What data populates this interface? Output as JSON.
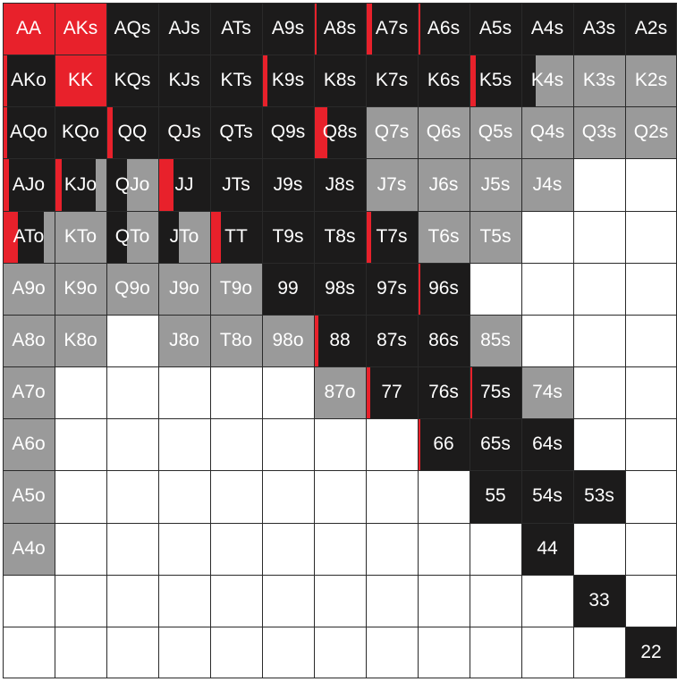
{
  "colors": {
    "raise": "#e8212b",
    "call": "#1c1b1b",
    "limp": "#9a9a9a",
    "fold": "#ffffff",
    "text": "#ffffff",
    "grid": "#2a2a2a"
  },
  "rows": [
    [
      {
        "label": "AA",
        "r": 1.0,
        "c": 0.0,
        "l": 0.0
      },
      {
        "label": "AKs",
        "r": 1.0,
        "c": 0.0,
        "l": 0.0
      },
      {
        "label": "AQs",
        "r": 0.0,
        "c": 1.0,
        "l": 0.0
      },
      {
        "label": "AJs",
        "r": 0.0,
        "c": 1.0,
        "l": 0.0
      },
      {
        "label": "ATs",
        "r": 0.0,
        "c": 1.0,
        "l": 0.0
      },
      {
        "label": "A9s",
        "r": 0.0,
        "c": 1.0,
        "l": 0.0
      },
      {
        "label": "A8s",
        "r": 0.06,
        "c": 0.94,
        "l": 0.0
      },
      {
        "label": "A7s",
        "r": 0.12,
        "c": 0.88,
        "l": 0.0
      },
      {
        "label": "A6s",
        "r": 0.06,
        "c": 0.94,
        "l": 0.0
      },
      {
        "label": "A5s",
        "r": 0.0,
        "c": 1.0,
        "l": 0.0
      },
      {
        "label": "A4s",
        "r": 0.0,
        "c": 1.0,
        "l": 0.0
      },
      {
        "label": "A3s",
        "r": 0.0,
        "c": 1.0,
        "l": 0.0
      },
      {
        "label": "A2s",
        "r": 0.0,
        "c": 1.0,
        "l": 0.0
      }
    ],
    [
      {
        "label": "AKo",
        "r": 0.08,
        "c": 0.92,
        "l": 0.0
      },
      {
        "label": "KK",
        "r": 1.0,
        "c": 0.0,
        "l": 0.0
      },
      {
        "label": "KQs",
        "r": 0.0,
        "c": 1.0,
        "l": 0.0
      },
      {
        "label": "KJs",
        "r": 0.0,
        "c": 1.0,
        "l": 0.0
      },
      {
        "label": "KTs",
        "r": 0.0,
        "c": 1.0,
        "l": 0.0
      },
      {
        "label": "K9s",
        "r": 0.1,
        "c": 0.9,
        "l": 0.0
      },
      {
        "label": "K8s",
        "r": 0.0,
        "c": 1.0,
        "l": 0.0
      },
      {
        "label": "K7s",
        "r": 0.0,
        "c": 1.0,
        "l": 0.0
      },
      {
        "label": "K6s",
        "r": 0.0,
        "c": 1.0,
        "l": 0.0
      },
      {
        "label": "K5s",
        "r": 0.12,
        "c": 0.88,
        "l": 0.0
      },
      {
        "label": "K4s",
        "r": 0.0,
        "c": 0.28,
        "l": 0.72
      },
      {
        "label": "K3s",
        "r": 0.0,
        "c": 0.0,
        "l": 1.0
      },
      {
        "label": "K2s",
        "r": 0.0,
        "c": 0.0,
        "l": 1.0
      }
    ],
    [
      {
        "label": "AQo",
        "r": 0.08,
        "c": 0.92,
        "l": 0.0
      },
      {
        "label": "KQo",
        "r": 0.0,
        "c": 1.0,
        "l": 0.0
      },
      {
        "label": "QQ",
        "r": 0.12,
        "c": 0.88,
        "l": 0.0
      },
      {
        "label": "QJs",
        "r": 0.0,
        "c": 1.0,
        "l": 0.0
      },
      {
        "label": "QTs",
        "r": 0.0,
        "c": 1.0,
        "l": 0.0
      },
      {
        "label": "Q9s",
        "r": 0.0,
        "c": 1.0,
        "l": 0.0
      },
      {
        "label": "Q8s",
        "r": 0.25,
        "c": 0.75,
        "l": 0.0
      },
      {
        "label": "Q7s",
        "r": 0.0,
        "c": 0.0,
        "l": 1.0
      },
      {
        "label": "Q6s",
        "r": 0.0,
        "c": 0.0,
        "l": 1.0
      },
      {
        "label": "Q5s",
        "r": 0.0,
        "c": 0.0,
        "l": 1.0
      },
      {
        "label": "Q4s",
        "r": 0.0,
        "c": 0.0,
        "l": 1.0
      },
      {
        "label": "Q3s",
        "r": 0.0,
        "c": 0.0,
        "l": 1.0
      },
      {
        "label": "Q2s",
        "r": 0.0,
        "c": 0.0,
        "l": 1.0
      }
    ],
    [
      {
        "label": "AJo",
        "r": 0.12,
        "c": 0.88,
        "l": 0.0
      },
      {
        "label": "KJo",
        "r": 0.14,
        "c": 0.66,
        "l": 0.2
      },
      {
        "label": "QJo",
        "r": 0.0,
        "c": 0.4,
        "l": 0.6
      },
      {
        "label": "JJ",
        "r": 0.3,
        "c": 0.7,
        "l": 0.0
      },
      {
        "label": "JTs",
        "r": 0.0,
        "c": 1.0,
        "l": 0.0
      },
      {
        "label": "J9s",
        "r": 0.0,
        "c": 1.0,
        "l": 0.0
      },
      {
        "label": "J8s",
        "r": 0.0,
        "c": 1.0,
        "l": 0.0
      },
      {
        "label": "J7s",
        "r": 0.0,
        "c": 0.0,
        "l": 1.0
      },
      {
        "label": "J6s",
        "r": 0.0,
        "c": 0.0,
        "l": 1.0
      },
      {
        "label": "J5s",
        "r": 0.0,
        "c": 0.0,
        "l": 1.0
      },
      {
        "label": "J4s",
        "r": 0.0,
        "c": 0.0,
        "l": 1.0
      },
      {
        "label": "",
        "r": 0.0,
        "c": 0.0,
        "l": 0.0
      },
      {
        "label": "",
        "r": 0.0,
        "c": 0.0,
        "l": 0.0
      }
    ],
    [
      {
        "label": "ATo",
        "r": 0.3,
        "c": 0.5,
        "l": 0.2
      },
      {
        "label": "KTo",
        "r": 0.0,
        "c": 0.0,
        "l": 1.0
      },
      {
        "label": "QTo",
        "r": 0.0,
        "c": 0.4,
        "l": 0.6
      },
      {
        "label": "JTo",
        "r": 0.0,
        "c": 0.4,
        "l": 0.6
      },
      {
        "label": "TT",
        "r": 0.2,
        "c": 0.8,
        "l": 0.0
      },
      {
        "label": "T9s",
        "r": 0.0,
        "c": 1.0,
        "l": 0.0
      },
      {
        "label": "T8s",
        "r": 0.0,
        "c": 1.0,
        "l": 0.0
      },
      {
        "label": "T7s",
        "r": 0.1,
        "c": 0.9,
        "l": 0.0
      },
      {
        "label": "T6s",
        "r": 0.0,
        "c": 0.0,
        "l": 1.0
      },
      {
        "label": "T5s",
        "r": 0.0,
        "c": 0.0,
        "l": 1.0
      },
      {
        "label": "",
        "r": 0.0,
        "c": 0.0,
        "l": 0.0
      },
      {
        "label": "",
        "r": 0.0,
        "c": 0.0,
        "l": 0.0
      },
      {
        "label": "",
        "r": 0.0,
        "c": 0.0,
        "l": 0.0
      }
    ],
    [
      {
        "label": "A9o",
        "r": 0.0,
        "c": 0.0,
        "l": 1.0
      },
      {
        "label": "K9o",
        "r": 0.0,
        "c": 0.0,
        "l": 1.0
      },
      {
        "label": "Q9o",
        "r": 0.0,
        "c": 0.0,
        "l": 1.0
      },
      {
        "label": "J9o",
        "r": 0.0,
        "c": 0.0,
        "l": 1.0
      },
      {
        "label": "T9o",
        "r": 0.0,
        "c": 0.0,
        "l": 1.0
      },
      {
        "label": "99",
        "r": 0.0,
        "c": 1.0,
        "l": 0.0
      },
      {
        "label": "98s",
        "r": 0.0,
        "c": 1.0,
        "l": 0.0
      },
      {
        "label": "97s",
        "r": 0.0,
        "c": 1.0,
        "l": 0.0
      },
      {
        "label": "96s",
        "r": 0.06,
        "c": 0.94,
        "l": 0.0
      },
      {
        "label": "",
        "r": 0.0,
        "c": 0.0,
        "l": 0.0
      },
      {
        "label": "",
        "r": 0.0,
        "c": 0.0,
        "l": 0.0
      },
      {
        "label": "",
        "r": 0.0,
        "c": 0.0,
        "l": 0.0
      },
      {
        "label": "",
        "r": 0.0,
        "c": 0.0,
        "l": 0.0
      }
    ],
    [
      {
        "label": "A8o",
        "r": 0.0,
        "c": 0.0,
        "l": 1.0
      },
      {
        "label": "K8o",
        "r": 0.0,
        "c": 0.0,
        "l": 1.0
      },
      {
        "label": "",
        "r": 0.0,
        "c": 0.0,
        "l": 0.0
      },
      {
        "label": "J8o",
        "r": 0.0,
        "c": 0.0,
        "l": 1.0
      },
      {
        "label": "T8o",
        "r": 0.0,
        "c": 0.0,
        "l": 1.0
      },
      {
        "label": "98o",
        "r": 0.0,
        "c": 0.0,
        "l": 1.0
      },
      {
        "label": "88",
        "r": 0.08,
        "c": 0.92,
        "l": 0.0
      },
      {
        "label": "87s",
        "r": 0.0,
        "c": 1.0,
        "l": 0.0
      },
      {
        "label": "86s",
        "r": 0.0,
        "c": 1.0,
        "l": 0.0
      },
      {
        "label": "85s",
        "r": 0.0,
        "c": 0.0,
        "l": 1.0
      },
      {
        "label": "",
        "r": 0.0,
        "c": 0.0,
        "l": 0.0
      },
      {
        "label": "",
        "r": 0.0,
        "c": 0.0,
        "l": 0.0
      },
      {
        "label": "",
        "r": 0.0,
        "c": 0.0,
        "l": 0.0
      }
    ],
    [
      {
        "label": "A7o",
        "r": 0.0,
        "c": 0.0,
        "l": 1.0
      },
      {
        "label": "",
        "r": 0.0,
        "c": 0.0,
        "l": 0.0
      },
      {
        "label": "",
        "r": 0.0,
        "c": 0.0,
        "l": 0.0
      },
      {
        "label": "",
        "r": 0.0,
        "c": 0.0,
        "l": 0.0
      },
      {
        "label": "",
        "r": 0.0,
        "c": 0.0,
        "l": 0.0
      },
      {
        "label": "",
        "r": 0.0,
        "c": 0.0,
        "l": 0.0
      },
      {
        "label": "87o",
        "r": 0.0,
        "c": 0.0,
        "l": 1.0
      },
      {
        "label": "77",
        "r": 0.08,
        "c": 0.92,
        "l": 0.0
      },
      {
        "label": "76s",
        "r": 0.0,
        "c": 1.0,
        "l": 0.0
      },
      {
        "label": "75s",
        "r": 0.06,
        "c": 0.94,
        "l": 0.0
      },
      {
        "label": "74s",
        "r": 0.0,
        "c": 0.0,
        "l": 1.0
      },
      {
        "label": "",
        "r": 0.0,
        "c": 0.0,
        "l": 0.0
      },
      {
        "label": "",
        "r": 0.0,
        "c": 0.0,
        "l": 0.0
      }
    ],
    [
      {
        "label": "A6o",
        "r": 0.0,
        "c": 0.0,
        "l": 1.0
      },
      {
        "label": "",
        "r": 0.0,
        "c": 0.0,
        "l": 0.0
      },
      {
        "label": "",
        "r": 0.0,
        "c": 0.0,
        "l": 0.0
      },
      {
        "label": "",
        "r": 0.0,
        "c": 0.0,
        "l": 0.0
      },
      {
        "label": "",
        "r": 0.0,
        "c": 0.0,
        "l": 0.0
      },
      {
        "label": "",
        "r": 0.0,
        "c": 0.0,
        "l": 0.0
      },
      {
        "label": "",
        "r": 0.0,
        "c": 0.0,
        "l": 0.0
      },
      {
        "label": "",
        "r": 0.0,
        "c": 0.0,
        "l": 0.0
      },
      {
        "label": "66",
        "r": 0.06,
        "c": 0.94,
        "l": 0.0
      },
      {
        "label": "65s",
        "r": 0.0,
        "c": 1.0,
        "l": 0.0
      },
      {
        "label": "64s",
        "r": 0.0,
        "c": 1.0,
        "l": 0.0
      },
      {
        "label": "",
        "r": 0.0,
        "c": 0.0,
        "l": 0.0
      },
      {
        "label": "",
        "r": 0.0,
        "c": 0.0,
        "l": 0.0
      }
    ],
    [
      {
        "label": "A5o",
        "r": 0.0,
        "c": 0.0,
        "l": 1.0
      },
      {
        "label": "",
        "r": 0.0,
        "c": 0.0,
        "l": 0.0
      },
      {
        "label": "",
        "r": 0.0,
        "c": 0.0,
        "l": 0.0
      },
      {
        "label": "",
        "r": 0.0,
        "c": 0.0,
        "l": 0.0
      },
      {
        "label": "",
        "r": 0.0,
        "c": 0.0,
        "l": 0.0
      },
      {
        "label": "",
        "r": 0.0,
        "c": 0.0,
        "l": 0.0
      },
      {
        "label": "",
        "r": 0.0,
        "c": 0.0,
        "l": 0.0
      },
      {
        "label": "",
        "r": 0.0,
        "c": 0.0,
        "l": 0.0
      },
      {
        "label": "",
        "r": 0.0,
        "c": 0.0,
        "l": 0.0
      },
      {
        "label": "55",
        "r": 0.0,
        "c": 1.0,
        "l": 0.0
      },
      {
        "label": "54s",
        "r": 0.0,
        "c": 1.0,
        "l": 0.0
      },
      {
        "label": "53s",
        "r": 0.0,
        "c": 1.0,
        "l": 0.0
      },
      {
        "label": "",
        "r": 0.0,
        "c": 0.0,
        "l": 0.0
      }
    ],
    [
      {
        "label": "A4o",
        "r": 0.0,
        "c": 0.0,
        "l": 1.0
      },
      {
        "label": "",
        "r": 0.0,
        "c": 0.0,
        "l": 0.0
      },
      {
        "label": "",
        "r": 0.0,
        "c": 0.0,
        "l": 0.0
      },
      {
        "label": "",
        "r": 0.0,
        "c": 0.0,
        "l": 0.0
      },
      {
        "label": "",
        "r": 0.0,
        "c": 0.0,
        "l": 0.0
      },
      {
        "label": "",
        "r": 0.0,
        "c": 0.0,
        "l": 0.0
      },
      {
        "label": "",
        "r": 0.0,
        "c": 0.0,
        "l": 0.0
      },
      {
        "label": "",
        "r": 0.0,
        "c": 0.0,
        "l": 0.0
      },
      {
        "label": "",
        "r": 0.0,
        "c": 0.0,
        "l": 0.0
      },
      {
        "label": "",
        "r": 0.0,
        "c": 0.0,
        "l": 0.0
      },
      {
        "label": "44",
        "r": 0.0,
        "c": 1.0,
        "l": 0.0
      },
      {
        "label": "",
        "r": 0.0,
        "c": 0.0,
        "l": 0.0
      },
      {
        "label": "",
        "r": 0.0,
        "c": 0.0,
        "l": 0.0
      }
    ],
    [
      {
        "label": "",
        "r": 0.0,
        "c": 0.0,
        "l": 0.0
      },
      {
        "label": "",
        "r": 0.0,
        "c": 0.0,
        "l": 0.0
      },
      {
        "label": "",
        "r": 0.0,
        "c": 0.0,
        "l": 0.0
      },
      {
        "label": "",
        "r": 0.0,
        "c": 0.0,
        "l": 0.0
      },
      {
        "label": "",
        "r": 0.0,
        "c": 0.0,
        "l": 0.0
      },
      {
        "label": "",
        "r": 0.0,
        "c": 0.0,
        "l": 0.0
      },
      {
        "label": "",
        "r": 0.0,
        "c": 0.0,
        "l": 0.0
      },
      {
        "label": "",
        "r": 0.0,
        "c": 0.0,
        "l": 0.0
      },
      {
        "label": "",
        "r": 0.0,
        "c": 0.0,
        "l": 0.0
      },
      {
        "label": "",
        "r": 0.0,
        "c": 0.0,
        "l": 0.0
      },
      {
        "label": "",
        "r": 0.0,
        "c": 0.0,
        "l": 0.0
      },
      {
        "label": "33",
        "r": 0.0,
        "c": 1.0,
        "l": 0.0
      },
      {
        "label": "",
        "r": 0.0,
        "c": 0.0,
        "l": 0.0
      }
    ],
    [
      {
        "label": "",
        "r": 0.0,
        "c": 0.0,
        "l": 0.0
      },
      {
        "label": "",
        "r": 0.0,
        "c": 0.0,
        "l": 0.0
      },
      {
        "label": "",
        "r": 0.0,
        "c": 0.0,
        "l": 0.0
      },
      {
        "label": "",
        "r": 0.0,
        "c": 0.0,
        "l": 0.0
      },
      {
        "label": "",
        "r": 0.0,
        "c": 0.0,
        "l": 0.0
      },
      {
        "label": "",
        "r": 0.0,
        "c": 0.0,
        "l": 0.0
      },
      {
        "label": "",
        "r": 0.0,
        "c": 0.0,
        "l": 0.0
      },
      {
        "label": "",
        "r": 0.0,
        "c": 0.0,
        "l": 0.0
      },
      {
        "label": "",
        "r": 0.0,
        "c": 0.0,
        "l": 0.0
      },
      {
        "label": "",
        "r": 0.0,
        "c": 0.0,
        "l": 0.0
      },
      {
        "label": "",
        "r": 0.0,
        "c": 0.0,
        "l": 0.0
      },
      {
        "label": "",
        "r": 0.0,
        "c": 0.0,
        "l": 0.0
      },
      {
        "label": "22",
        "r": 0.0,
        "c": 1.0,
        "l": 0.0
      }
    ]
  ]
}
